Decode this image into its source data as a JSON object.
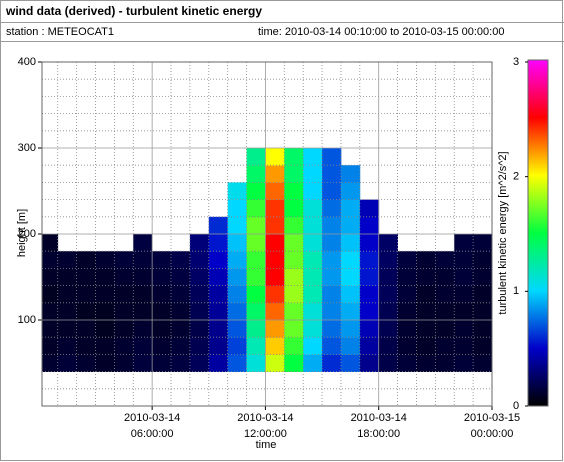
{
  "header": {
    "title": "wind data (derived) - turbulent kinetic energy",
    "station": "station : METEOCAT1",
    "time": "time: 2010-03-14 00:10:00 to 2010-03-15 00:00:00"
  },
  "chart_data": {
    "type": "heatmap",
    "xlabel": "time",
    "ylabel": "height [m]",
    "zlabel": "turbulent kinetic energy [m^2/s^2]",
    "xlim": [
      0.1667,
      24
    ],
    "ylim": [
      0,
      400
    ],
    "zlim": [
      0,
      3
    ],
    "xticks": [
      {
        "value": 6,
        "label": "2010-03-14 06:00:00"
      },
      {
        "value": 12,
        "label": "2010-03-14 12:00:00"
      },
      {
        "value": 18,
        "label": "2010-03-14 18:00:00"
      },
      {
        "value": 24,
        "label": "2010-03-15 00:00:00"
      }
    ],
    "yticks": [
      100,
      200,
      300,
      400
    ],
    "zticks": [
      0,
      1,
      2,
      3
    ],
    "x_minor_grid": [
      1,
      2,
      3,
      4,
      5,
      7,
      8,
      9,
      10,
      11,
      13,
      14,
      15,
      16,
      17,
      19,
      20,
      21,
      22,
      23
    ],
    "y_minor_grid": [
      20,
      40,
      60,
      80,
      120,
      140,
      160,
      180,
      220,
      240,
      260,
      280,
      320,
      340,
      360,
      380
    ],
    "colors": [
      "#000000",
      "#0000c8",
      "#00d8ff",
      "#00ff40",
      "#ffff00",
      "#ff0000",
      "#ff00ff"
    ],
    "x_edges": [
      0.1667,
      1,
      2,
      3,
      4,
      5,
      6,
      7,
      8,
      9,
      10,
      11,
      12,
      13,
      14,
      15,
      16,
      17,
      18,
      19,
      20,
      21,
      22,
      23,
      24
    ],
    "y_edges": [
      40,
      60,
      80,
      100,
      120,
      140,
      160,
      180,
      200,
      220,
      240,
      260,
      280,
      300
    ],
    "z": [
      [
        0.12,
        0.1,
        0.1,
        0.1,
        0.08,
        0.1,
        0.12,
        0.1,
        null,
        null,
        null,
        null,
        null
      ],
      [
        0.14,
        0.12,
        0.1,
        0.1,
        0.1,
        0.1,
        0.12,
        null,
        null,
        null,
        null,
        null,
        null
      ],
      [
        0.12,
        0.1,
        0.1,
        0.08,
        0.1,
        0.1,
        0.1,
        null,
        null,
        null,
        null,
        null,
        null
      ],
      [
        0.1,
        0.1,
        0.08,
        0.08,
        0.1,
        0.1,
        0.12,
        null,
        null,
        null,
        null,
        null,
        null
      ],
      [
        0.12,
        0.12,
        0.1,
        0.1,
        0.1,
        0.12,
        0.14,
        null,
        null,
        null,
        null,
        null,
        null
      ],
      [
        0.15,
        0.14,
        0.12,
        0.1,
        0.1,
        0.12,
        0.14,
        0.16,
        null,
        null,
        null,
        null,
        null
      ],
      [
        0.14,
        0.12,
        0.1,
        0.1,
        0.12,
        0.14,
        0.15,
        null,
        null,
        null,
        null,
        null,
        null
      ],
      [
        0.16,
        0.14,
        0.12,
        0.12,
        0.14,
        0.16,
        0.18,
        null,
        null,
        null,
        null,
        null,
        null
      ],
      [
        0.22,
        0.2,
        0.18,
        0.2,
        0.22,
        0.25,
        0.28,
        0.3,
        null,
        null,
        null,
        null,
        null
      ],
      [
        0.4,
        0.35,
        0.35,
        0.38,
        0.4,
        0.45,
        0.5,
        0.55,
        0.6,
        null,
        null,
        null,
        null
      ],
      [
        0.7,
        0.65,
        0.7,
        0.75,
        0.8,
        0.85,
        0.9,
        0.95,
        1.0,
        1.0,
        1.05,
        null,
        null
      ],
      [
        1.1,
        1.2,
        1.3,
        1.4,
        1.5,
        1.6,
        1.6,
        1.7,
        1.7,
        1.6,
        1.5,
        1.4,
        1.3
      ],
      [
        1.9,
        2.1,
        2.2,
        2.3,
        2.4,
        2.5,
        2.5,
        2.5,
        2.4,
        2.4,
        2.3,
        2.2,
        2.0
      ],
      [
        1.5,
        1.6,
        1.7,
        1.7,
        1.8,
        1.8,
        1.7,
        1.7,
        1.6,
        1.5,
        1.5,
        1.4,
        1.4
      ],
      [
        0.9,
        1.0,
        1.1,
        1.1,
        1.2,
        1.2,
        1.2,
        1.1,
        1.1,
        1.1,
        1.0,
        1.0,
        1.0
      ],
      [
        0.6,
        0.7,
        0.75,
        0.8,
        0.8,
        0.85,
        0.85,
        0.8,
        0.8,
        0.75,
        0.7,
        0.7,
        0.7
      ],
      [
        0.7,
        0.8,
        0.85,
        0.9,
        0.95,
        1.0,
        1.0,
        0.95,
        0.9,
        0.9,
        0.85,
        0.8,
        null
      ],
      [
        0.35,
        0.4,
        0.45,
        0.5,
        0.5,
        0.55,
        0.55,
        0.5,
        0.5,
        0.45,
        null,
        null,
        null
      ],
      [
        0.18,
        0.18,
        0.2,
        0.2,
        0.22,
        0.22,
        0.24,
        0.25,
        null,
        null,
        null,
        null,
        null
      ],
      [
        0.14,
        0.12,
        0.12,
        0.12,
        0.14,
        0.14,
        0.15,
        null,
        null,
        null,
        null,
        null,
        null
      ],
      [
        0.12,
        0.1,
        0.1,
        0.1,
        0.1,
        0.12,
        0.12,
        null,
        null,
        null,
        null,
        null,
        null
      ],
      [
        0.12,
        0.12,
        0.1,
        0.1,
        0.12,
        0.12,
        0.14,
        null,
        null,
        null,
        null,
        null,
        null
      ],
      [
        0.14,
        0.12,
        0.12,
        0.1,
        0.12,
        0.14,
        0.14,
        0.15,
        null,
        null,
        null,
        null,
        null
      ],
      [
        0.12,
        0.1,
        0.1,
        0.1,
        0.1,
        0.12,
        0.12,
        0.14,
        null,
        null,
        null,
        null,
        null
      ]
    ]
  }
}
